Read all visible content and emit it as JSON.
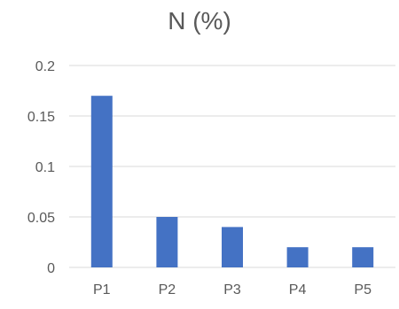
{
  "chart_data": {
    "type": "bar",
    "title": "N (%)",
    "categories": [
      "P1",
      "P2",
      "P3",
      "P4",
      "P5"
    ],
    "values": [
      0.17,
      0.05,
      0.04,
      0.02,
      0.02
    ],
    "xlabel": "",
    "ylabel": "",
    "ylim": [
      0,
      0.2
    ],
    "yticks": [
      0,
      0.05,
      0.1,
      0.15,
      0.2
    ],
    "ytick_labels": [
      "0",
      "0.05",
      "0.1",
      "0.15",
      "0.2"
    ],
    "grid": true,
    "legend": "none",
    "colors": {
      "bar": "#4472C4",
      "grid": "#D9D9D9",
      "text": "#595959"
    }
  }
}
